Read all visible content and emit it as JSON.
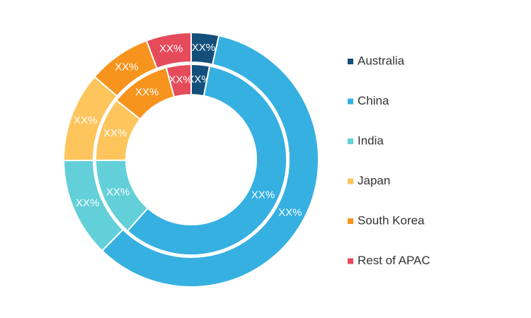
{
  "chart_data": {
    "type": "donut",
    "categories": [
      "Australia",
      "China",
      "India",
      "Japan",
      "South Korea",
      "Rest of APAC"
    ],
    "colors": [
      "#144f7b",
      "#36b0e1",
      "#63d0d9",
      "#fec55c",
      "#f7941e",
      "#e64b5b"
    ],
    "series": [
      {
        "values": [
          3.5,
          58.8,
          12.6,
          11.4,
          8,
          5.7
        ],
        "value_labels": [
          "XX%",
          "XX%",
          "XX%",
          "XX%",
          "XX%",
          "XX%"
        ]
      },
      {
        "values": [
          3.1,
          58.5,
          13.3,
          10.8,
          10.1,
          4.2
        ],
        "value_labels": [
          "XX%",
          "XX%",
          "XX%",
          "XX%",
          "XX%",
          "XX%"
        ]
      }
    ]
  }
}
